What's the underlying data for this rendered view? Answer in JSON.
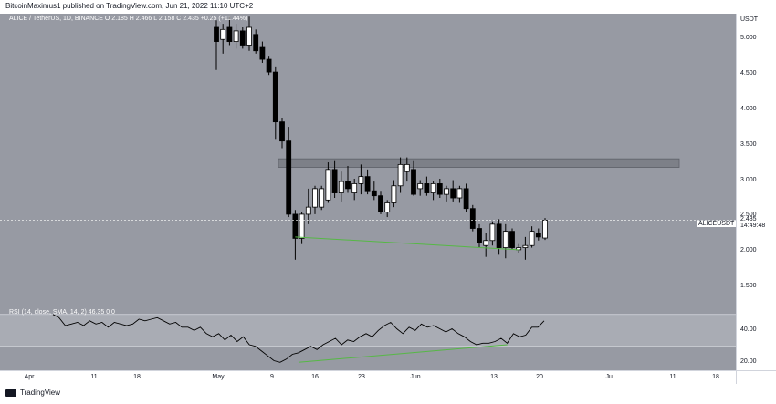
{
  "caption": "BitcoinMaximus1 published on TradingView.com, Jun 21, 2022 11:10 UTC+2",
  "legend": {
    "symbol": "ALICE / TetherUS, 1D, BINANCE",
    "values": "O 2.185  H 2.466  L 2.158  C 2.435  +0.25 (+11.44%)"
  },
  "rsi_legend": "RSI (14, close, SMA, 14, 2)  46.35  0  0",
  "price_axis": {
    "currency": "USDT",
    "ticks": [
      "5.000",
      "4.500",
      "4.000",
      "3.500",
      "3.000",
      "2.500",
      "2.000",
      "1.500"
    ]
  },
  "rsi_axis": {
    "ticks": [
      "40.00",
      "20.00"
    ]
  },
  "last_price": {
    "symbol": "ALICEUSDT",
    "value": "2.435",
    "countdown": "14:49:48"
  },
  "time_axis": [
    "Apr",
    "11",
    "18",
    "May",
    "9",
    "16",
    "23",
    "Jun",
    "13",
    "20",
    "Jul",
    "11",
    "18"
  ],
  "footer": {
    "brand": "TradingView"
  },
  "colors": {
    "background": "#979aa3",
    "bull": "#ffffff",
    "bear": "#000000",
    "support": "#56b845",
    "zone": "#7d8088"
  },
  "chart_data": [
    {
      "type": "candlestick",
      "title": "ALICE / TetherUS, 1D, BINANCE",
      "ylabel": "USDT",
      "ylim": [
        1.3,
        5.15
      ],
      "x_ticks": [
        "Apr",
        "11",
        "18",
        "May",
        "9",
        "16",
        "23",
        "Jun",
        "13",
        "20",
        "Jul",
        "11",
        "18"
      ],
      "candles": [
        {
          "o": 5.15,
          "h": 5.25,
          "l": 4.55,
          "c": 4.95
        },
        {
          "o": 4.98,
          "h": 5.2,
          "l": 4.78,
          "c": 5.12
        },
        {
          "o": 5.15,
          "h": 5.3,
          "l": 4.9,
          "c": 4.95
        },
        {
          "o": 4.95,
          "h": 5.2,
          "l": 4.85,
          "c": 5.1
        },
        {
          "o": 5.1,
          "h": 5.15,
          "l": 4.85,
          "c": 4.9
        },
        {
          "o": 4.9,
          "h": 5.3,
          "l": 4.82,
          "c": 5.15
        },
        {
          "o": 5.05,
          "h": 5.12,
          "l": 4.78,
          "c": 4.82
        },
        {
          "o": 4.88,
          "h": 4.95,
          "l": 4.65,
          "c": 4.7
        },
        {
          "o": 4.7,
          "h": 4.75,
          "l": 4.48,
          "c": 4.52
        },
        {
          "o": 4.52,
          "h": 4.6,
          "l": 3.58,
          "c": 3.82
        },
        {
          "o": 3.82,
          "h": 3.88,
          "l": 3.45,
          "c": 3.55
        },
        {
          "o": 3.55,
          "h": 3.75,
          "l": 2.48,
          "c": 2.52
        },
        {
          "o": 2.52,
          "h": 2.58,
          "l": 1.88,
          "c": 2.18
        },
        {
          "o": 2.18,
          "h": 2.55,
          "l": 2.1,
          "c": 2.52
        },
        {
          "o": 2.52,
          "h": 2.88,
          "l": 2.38,
          "c": 2.62
        },
        {
          "o": 2.62,
          "h": 2.92,
          "l": 2.52,
          "c": 2.88
        },
        {
          "o": 2.62,
          "h": 2.92,
          "l": 2.58,
          "c": 2.88
        },
        {
          "o": 2.72,
          "h": 3.25,
          "l": 2.68,
          "c": 3.15
        },
        {
          "o": 3.15,
          "h": 3.28,
          "l": 2.75,
          "c": 2.82
        },
        {
          "o": 2.82,
          "h": 3.12,
          "l": 2.7,
          "c": 2.98
        },
        {
          "o": 2.98,
          "h": 3.2,
          "l": 2.82,
          "c": 2.88
        },
        {
          "o": 2.82,
          "h": 3.02,
          "l": 2.72,
          "c": 2.95
        },
        {
          "o": 2.95,
          "h": 3.22,
          "l": 2.8,
          "c": 3.05
        },
        {
          "o": 3.05,
          "h": 3.15,
          "l": 2.8,
          "c": 2.85
        },
        {
          "o": 2.85,
          "h": 2.98,
          "l": 2.72,
          "c": 2.78
        },
        {
          "o": 2.78,
          "h": 2.85,
          "l": 2.52,
          "c": 2.55
        },
        {
          "o": 2.55,
          "h": 2.72,
          "l": 2.48,
          "c": 2.68
        },
        {
          "o": 2.68,
          "h": 3.0,
          "l": 2.62,
          "c": 2.92
        },
        {
          "o": 2.92,
          "h": 3.32,
          "l": 2.82,
          "c": 3.22
        },
        {
          "o": 3.12,
          "h": 3.32,
          "l": 2.98,
          "c": 3.22
        },
        {
          "o": 3.15,
          "h": 3.28,
          "l": 2.78,
          "c": 2.8
        },
        {
          "o": 2.88,
          "h": 3.0,
          "l": 2.78,
          "c": 2.95
        },
        {
          "o": 2.95,
          "h": 3.05,
          "l": 2.78,
          "c": 2.82
        },
        {
          "o": 2.82,
          "h": 2.98,
          "l": 2.72,
          "c": 2.95
        },
        {
          "o": 2.95,
          "h": 3.02,
          "l": 2.75,
          "c": 2.8
        },
        {
          "o": 2.8,
          "h": 2.92,
          "l": 2.7,
          "c": 2.88
        },
        {
          "o": 2.88,
          "h": 3.0,
          "l": 2.7,
          "c": 2.75
        },
        {
          "o": 2.75,
          "h": 2.92,
          "l": 2.68,
          "c": 2.88
        },
        {
          "o": 2.88,
          "h": 2.95,
          "l": 2.55,
          "c": 2.6
        },
        {
          "o": 2.6,
          "h": 2.65,
          "l": 2.28,
          "c": 2.32
        },
        {
          "o": 2.32,
          "h": 2.38,
          "l": 2.05,
          "c": 2.12
        },
        {
          "o": 2.08,
          "h": 2.25,
          "l": 1.92,
          "c": 2.15
        },
        {
          "o": 2.15,
          "h": 2.42,
          "l": 2.08,
          "c": 2.38
        },
        {
          "o": 2.38,
          "h": 2.45,
          "l": 1.95,
          "c": 2.05
        },
        {
          "o": 2.05,
          "h": 2.38,
          "l": 1.9,
          "c": 2.28
        },
        {
          "o": 2.28,
          "h": 2.32,
          "l": 2.02,
          "c": 2.05
        },
        {
          "o": 2.02,
          "h": 2.1,
          "l": 1.98,
          "c": 2.05
        },
        {
          "o": 2.05,
          "h": 2.2,
          "l": 1.88,
          "c": 2.08
        },
        {
          "o": 2.08,
          "h": 2.35,
          "l": 2.05,
          "c": 2.28
        },
        {
          "o": 2.25,
          "h": 2.32,
          "l": 2.15,
          "c": 2.2
        },
        {
          "o": 2.185,
          "h": 2.466,
          "l": 2.158,
          "c": 2.435
        }
      ],
      "resistance_zone": [
        3.18,
        3.3
      ],
      "support_line": [
        {
          "candle": 12,
          "value": 2.2
        },
        {
          "candle": 46,
          "value": 2.02
        }
      ],
      "rsi": {
        "ylim": [
          15,
          55
        ],
        "upper_band": 50,
        "lower_band": 30,
        "values": [
          50,
          48,
          43,
          44,
          45,
          43,
          46,
          44,
          45,
          42,
          45,
          44,
          43,
          44,
          47,
          46,
          47,
          48,
          46,
          44,
          45,
          42,
          42,
          40,
          42,
          38,
          36,
          38,
          34,
          37,
          33,
          36,
          31,
          30,
          27,
          24,
          21,
          20,
          22,
          25,
          26,
          28,
          30,
          28,
          31,
          33,
          35,
          31,
          34,
          33,
          36,
          38,
          36,
          40,
          43,
          45,
          41,
          38,
          42,
          40,
          44,
          42,
          43,
          41,
          39,
          41,
          38,
          36,
          33,
          31,
          32,
          32,
          33,
          35,
          32,
          38,
          36,
          37,
          42,
          42,
          46
        ],
        "divergence_line": [
          {
            "index": 40,
            "value": 20
          },
          {
            "index": 74,
            "value": 31
          }
        ]
      }
    }
  ]
}
